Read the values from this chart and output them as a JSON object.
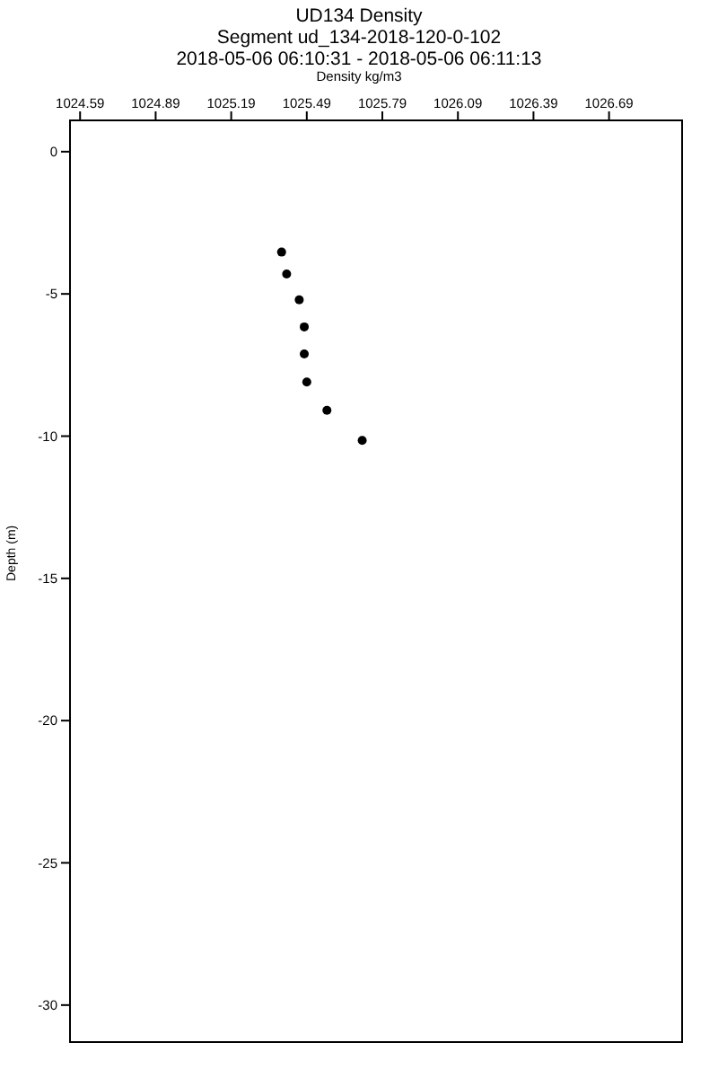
{
  "chart_data": {
    "type": "scatter",
    "title": "UD134 Density",
    "subtitle": "Segment ud_134-2018-120-0-102\n2018-05-06 06:10:31 - 2018-05-06 06:11:13",
    "xlabel": "Density kg/m3",
    "ylabel": "Depth (m)",
    "x": [
      1025.39,
      1025.41,
      1025.46,
      1025.48,
      1025.48,
      1025.49,
      1025.57,
      1025.71
    ],
    "series": [
      {
        "color": "#000000",
        "values": [
          -3.53,
          -4.3,
          -5.21,
          -6.16,
          -7.11,
          -8.1,
          -9.09,
          -10.15
        ]
      }
    ],
    "xlim": [
      1024.55,
      1026.98
    ],
    "xticks": [
      1024.59,
      1024.89,
      1025.19,
      1025.49,
      1025.79,
      1026.09,
      1026.39,
      1026.69
    ],
    "ylim": [
      -31.3,
      1.1
    ],
    "yticks": [
      -30,
      -25,
      -20,
      -15,
      -10,
      -5,
      0
    ],
    "marker": "circle",
    "grid": false,
    "legend": false
  }
}
